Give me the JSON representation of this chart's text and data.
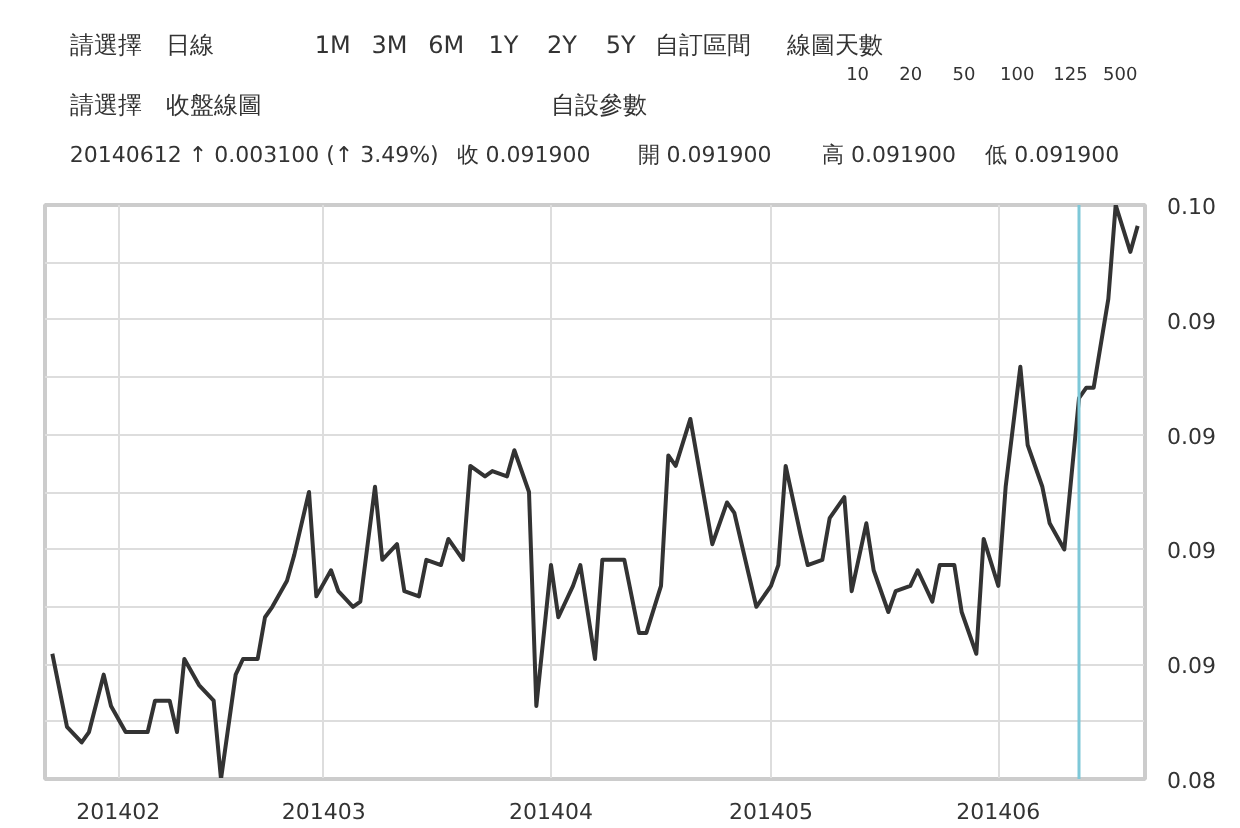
{
  "chart_data": {
    "type": "line",
    "annotations": [
      "請選擇",
      "日線",
      "1M",
      "3M",
      "6M",
      "1Y",
      "2Y",
      "5Y",
      "自訂區間",
      "線圖天數",
      "10",
      "20",
      "50",
      "100",
      "125",
      "500",
      "請選擇",
      "收盤線圖",
      "自設參數",
      "20140612  ↑ 0.003100 (↑ 3.49%)",
      "收 0.091900",
      "開 0.091900",
      "高 0.091900",
      "低 0.091900"
    ],
    "x": [
      "2014-01-23",
      "2014-01-25",
      "2014-01-27",
      "2014-01-28",
      "2014-01-30",
      "2014-01-31",
      "2014-02-02",
      "2014-02-05",
      "2014-02-06",
      "2014-02-08",
      "2014-02-09",
      "2014-02-10",
      "2014-02-12",
      "2014-02-14",
      "2014-02-15",
      "2014-02-17",
      "2014-02-18",
      "2014-02-20",
      "2014-02-21",
      "2014-02-22",
      "2014-02-24",
      "2014-02-25",
      "2014-02-27",
      "2014-02-28",
      "2014-03-02",
      "2014-03-03",
      "2014-03-05",
      "2014-03-06",
      "2014-03-08",
      "2014-03-09",
      "2014-03-11",
      "2014-03-12",
      "2014-03-14",
      "2014-03-15",
      "2014-03-17",
      "2014-03-18",
      "2014-03-20",
      "2014-03-21",
      "2014-03-23",
      "2014-03-24",
      "2014-03-26",
      "2014-03-27",
      "2014-03-29",
      "2014-03-30",
      "2014-04-01",
      "2014-04-02",
      "2014-04-04",
      "2014-04-05",
      "2014-04-07",
      "2014-04-08",
      "2014-04-10",
      "2014-04-11",
      "2014-04-13",
      "2014-04-14",
      "2014-04-16",
      "2014-04-17",
      "2014-04-18",
      "2014-04-20",
      "2014-04-22",
      "2014-04-23",
      "2014-04-25",
      "2014-04-26",
      "2014-04-28",
      "2014-04-29",
      "2014-05-01",
      "2014-05-02",
      "2014-05-03",
      "2014-05-05",
      "2014-05-06",
      "2014-05-08",
      "2014-05-09",
      "2014-05-11",
      "2014-05-12",
      "2014-05-14",
      "2014-05-15",
      "2014-05-17",
      "2014-05-18",
      "2014-05-20",
      "2014-05-21",
      "2014-05-23",
      "2014-05-24",
      "2014-05-26",
      "2014-05-27",
      "2014-05-29",
      "2014-05-30",
      "2014-06-01",
      "2014-06-02",
      "2014-06-04",
      "2014-06-05",
      "2014-06-07",
      "2014-06-08",
      "2014-06-10",
      "2014-06-12",
      "2014-06-13",
      "2014-06-14",
      "2014-06-16",
      "2014-06-17",
      "2014-06-19",
      "2014-06-20"
    ],
    "series": [
      {
        "color": "#333333",
        "values": [
          0.087,
          0.0856,
          0.0853,
          0.0855,
          0.0866,
          0.086,
          0.0855,
          0.0855,
          0.0861,
          0.0861,
          0.0855,
          0.0869,
          0.0864,
          0.0861,
          0.0846,
          0.0866,
          0.0869,
          0.0869,
          0.0877,
          0.0879,
          0.0884,
          0.0889,
          0.0901,
          0.0881,
          0.0886,
          0.0882,
          0.0879,
          0.088,
          0.0902,
          0.0888,
          0.0891,
          0.0882,
          0.0881,
          0.0888,
          0.0887,
          0.0892,
          0.0888,
          0.0906,
          0.0904,
          0.0905,
          0.0904,
          0.0909,
          0.0901,
          0.086,
          0.0887,
          0.0877,
          0.0883,
          0.0887,
          0.0869,
          0.0888,
          0.0888,
          0.0888,
          0.0874,
          0.0874,
          0.0883,
          0.0908,
          0.0906,
          0.0915,
          0.0899,
          0.0891,
          0.0899,
          0.0897,
          0.0885,
          0.0879,
          0.0883,
          0.0887,
          0.0906,
          0.0893,
          0.0887,
          0.0888,
          0.0896,
          0.09,
          0.0882,
          0.0895,
          0.0886,
          0.0878,
          0.0882,
          0.0883,
          0.0886,
          0.088,
          0.0887,
          0.0887,
          0.0878,
          0.087,
          0.0892,
          0.0883,
          0.0902,
          0.0925,
          0.091,
          0.0902,
          0.0895,
          0.089,
          0.0919,
          0.0921,
          0.0921,
          0.0938,
          0.0956,
          0.0947,
          0.0952
        ]
      }
    ],
    "xlim": [
      "2014-01-22",
      "2014-06-21"
    ],
    "xticks": [
      {
        "value": "2014-02-01",
        "label": "201402"
      },
      {
        "value": "2014-03-01",
        "label": "201403"
      },
      {
        "value": "2014-04-01",
        "label": "201404"
      },
      {
        "value": "2014-05-01",
        "label": "201405"
      },
      {
        "value": "2014-06-01",
        "label": "201406"
      }
    ],
    "ylim": [
      0.0846,
      0.0956
    ],
    "yticks": [
      {
        "value": 0.0846,
        "label": "0.08"
      },
      {
        "value": 0.0857,
        "label": null
      },
      {
        "value": 0.0868,
        "label": "0.09"
      },
      {
        "value": 0.0879,
        "label": null
      },
      {
        "value": 0.089,
        "label": "0.09"
      },
      {
        "value": 0.0901,
        "label": null
      },
      {
        "value": 0.0912,
        "label": "0.09"
      },
      {
        "value": 0.0923,
        "label": null
      },
      {
        "value": 0.0934,
        "label": "0.09"
      },
      {
        "value": 0.0945,
        "label": null
      },
      {
        "value": 0.0956,
        "label": "0.10"
      }
    ],
    "ref_lines": [
      {
        "axis": "x",
        "value": "2014-06-12",
        "color": "#7ec8d8"
      }
    ],
    "grid": true,
    "marker": "none",
    "line_style": "solid"
  }
}
